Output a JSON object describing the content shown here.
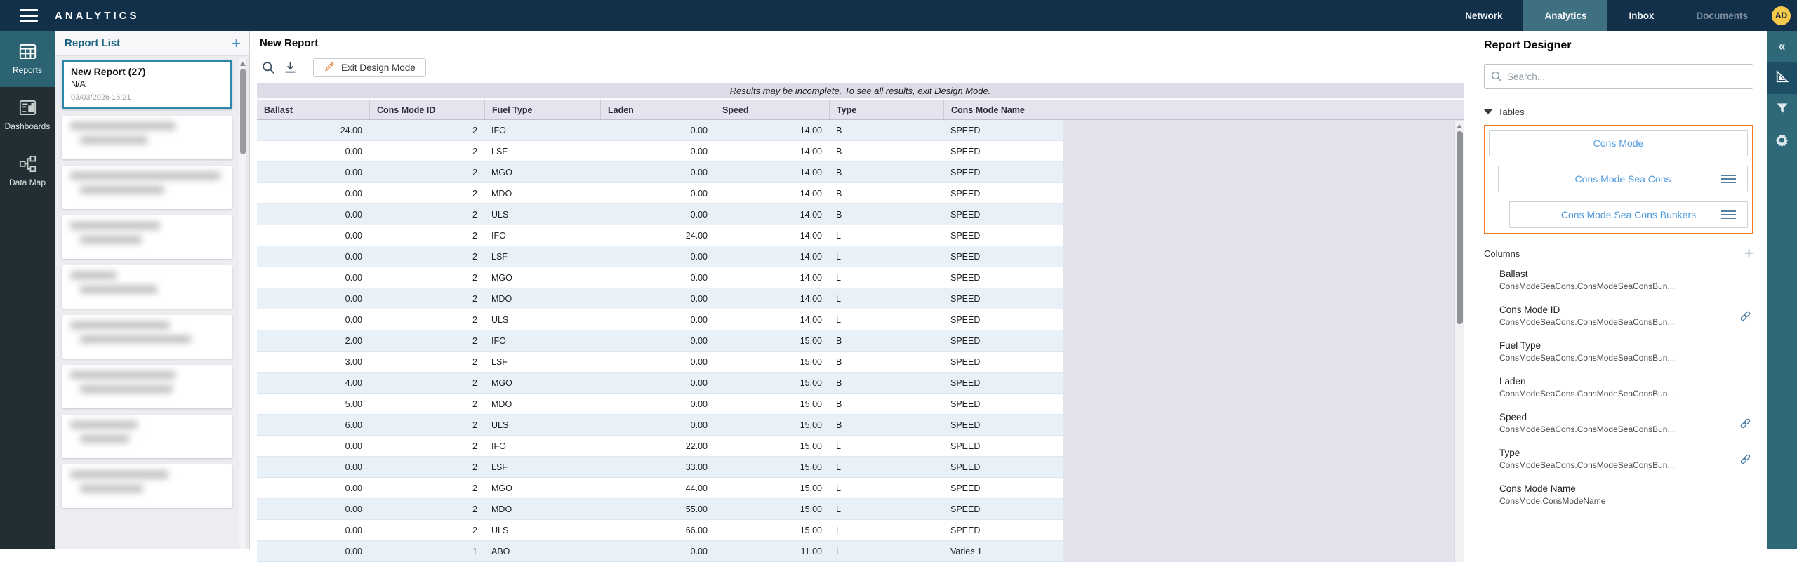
{
  "colors": {
    "navbar_bg": "#13304b",
    "nav_active_bg": "#3f7082",
    "sidebar_bg": "#222e33",
    "sidebar_active_bg": "#2c6373",
    "accent_orange": "#ee7b23",
    "link_blue": "#4f9bdd",
    "selected_card_border": "#2e86ab",
    "avatar_bg": "#f6c94a",
    "row_stripe": "#e9f1f8",
    "table_chrome": "#e4e4ee"
  },
  "navbar": {
    "brand": "ANALYTICS",
    "items": [
      {
        "label": "Network",
        "state": "normal"
      },
      {
        "label": "Analytics",
        "state": "active"
      },
      {
        "label": "Inbox",
        "state": "normal"
      },
      {
        "label": "Documents",
        "state": "disabled"
      }
    ],
    "avatar_initials": "AD"
  },
  "sidebar": {
    "items": [
      {
        "label": "Reports",
        "icon": "reports-icon",
        "active": true
      },
      {
        "label": "Dashboards",
        "icon": "dashboards-icon",
        "active": false
      },
      {
        "label": "Data Map",
        "icon": "data-map-icon",
        "active": false
      }
    ]
  },
  "report_list": {
    "title": "Report List",
    "add_icon": "+",
    "selected_card": {
      "title": "New Report (27)",
      "subtitle": "N/A",
      "timestamp": "03/03/2026 16:21"
    },
    "blurred_cards": [
      {
        "lines": [
          150,
          96
        ]
      },
      {
        "lines": [
          214,
          120
        ]
      },
      {
        "lines": [
          128,
          88
        ]
      },
      {
        "lines": [
          66,
          110
        ]
      },
      {
        "lines": [
          142,
          158
        ]
      },
      {
        "lines": [
          150,
          132
        ]
      },
      {
        "lines": [
          96,
          70
        ]
      },
      {
        "lines": [
          140,
          90
        ]
      }
    ]
  },
  "main": {
    "title": "New Report",
    "toolbar": {
      "exit_button_label": "Exit Design Mode"
    },
    "notice": "Results may be incomplete. To see all results, exit Design Mode.",
    "table": {
      "columns": [
        {
          "label": "Ballast",
          "align": "right"
        },
        {
          "label": "Cons Mode ID",
          "align": "right"
        },
        {
          "label": "Fuel Type",
          "align": "left"
        },
        {
          "label": "Laden",
          "align": "right"
        },
        {
          "label": "Speed",
          "align": "right"
        },
        {
          "label": "Type",
          "align": "left"
        },
        {
          "label": "Cons Mode Name",
          "align": "left"
        }
      ],
      "rows": [
        [
          "24.00",
          "2",
          "IFO",
          "0.00",
          "14.00",
          "B",
          "SPEED"
        ],
        [
          "0.00",
          "2",
          "LSF",
          "0.00",
          "14.00",
          "B",
          "SPEED"
        ],
        [
          "0.00",
          "2",
          "MGO",
          "0.00",
          "14.00",
          "B",
          "SPEED"
        ],
        [
          "0.00",
          "2",
          "MDO",
          "0.00",
          "14.00",
          "B",
          "SPEED"
        ],
        [
          "0.00",
          "2",
          "ULS",
          "0.00",
          "14.00",
          "B",
          "SPEED"
        ],
        [
          "0.00",
          "2",
          "IFO",
          "24.00",
          "14.00",
          "L",
          "SPEED"
        ],
        [
          "0.00",
          "2",
          "LSF",
          "0.00",
          "14.00",
          "L",
          "SPEED"
        ],
        [
          "0.00",
          "2",
          "MGO",
          "0.00",
          "14.00",
          "L",
          "SPEED"
        ],
        [
          "0.00",
          "2",
          "MDO",
          "0.00",
          "14.00",
          "L",
          "SPEED"
        ],
        [
          "0.00",
          "2",
          "ULS",
          "0.00",
          "14.00",
          "L",
          "SPEED"
        ],
        [
          "2.00",
          "2",
          "IFO",
          "0.00",
          "15.00",
          "B",
          "SPEED"
        ],
        [
          "3.00",
          "2",
          "LSF",
          "0.00",
          "15.00",
          "B",
          "SPEED"
        ],
        [
          "4.00",
          "2",
          "MGO",
          "0.00",
          "15.00",
          "B",
          "SPEED"
        ],
        [
          "5.00",
          "2",
          "MDO",
          "0.00",
          "15.00",
          "B",
          "SPEED"
        ],
        [
          "6.00",
          "2",
          "ULS",
          "0.00",
          "15.00",
          "B",
          "SPEED"
        ],
        [
          "0.00",
          "2",
          "IFO",
          "22.00",
          "15.00",
          "L",
          "SPEED"
        ],
        [
          "0.00",
          "2",
          "LSF",
          "33.00",
          "15.00",
          "L",
          "SPEED"
        ],
        [
          "0.00",
          "2",
          "MGO",
          "44.00",
          "15.00",
          "L",
          "SPEED"
        ],
        [
          "0.00",
          "2",
          "MDO",
          "55.00",
          "15.00",
          "L",
          "SPEED"
        ],
        [
          "0.00",
          "2",
          "ULS",
          "66.00",
          "15.00",
          "L",
          "SPEED"
        ],
        [
          "0.00",
          "1",
          "ABO",
          "0.00",
          "11.00",
          "L",
          "Varies 1"
        ]
      ]
    }
  },
  "designer": {
    "title": "Report Designer",
    "search_placeholder": "Search...",
    "tables_section": {
      "label": "Tables",
      "tables": [
        {
          "name": "Cons Mode",
          "indent": 0,
          "drag_handle": false
        },
        {
          "name": "Cons Mode Sea Cons",
          "indent": 1,
          "drag_handle": true
        },
        {
          "name": "Cons Mode Sea Cons Bunkers",
          "indent": 2,
          "drag_handle": true
        }
      ]
    },
    "columns_section": {
      "label": "Columns",
      "add_icon": "+",
      "items": [
        {
          "name": "Ballast",
          "path": "ConsModeSeaCons.ConsModeSeaConsBun...",
          "linked": false
        },
        {
          "name": "Cons Mode ID",
          "path": "ConsModeSeaCons.ConsModeSeaConsBun...",
          "linked": true
        },
        {
          "name": "Fuel Type",
          "path": "ConsModeSeaCons.ConsModeSeaConsBun...",
          "linked": false
        },
        {
          "name": "Laden",
          "path": "ConsModeSeaCons.ConsModeSeaConsBun...",
          "linked": false
        },
        {
          "name": "Speed",
          "path": "ConsModeSeaCons.ConsModeSeaConsBun...",
          "linked": true
        },
        {
          "name": "Type",
          "path": "ConsModeSeaCons.ConsModeSeaConsBun...",
          "linked": true
        },
        {
          "name": "Cons Mode Name",
          "path": "ConsMode.ConsModeName",
          "linked": false
        }
      ]
    }
  },
  "right_toolbar": {
    "icons": [
      "collapse-icon",
      "design-mode-icon",
      "filter-icon",
      "settings-icon"
    ],
    "collapse_glyph": "«"
  }
}
